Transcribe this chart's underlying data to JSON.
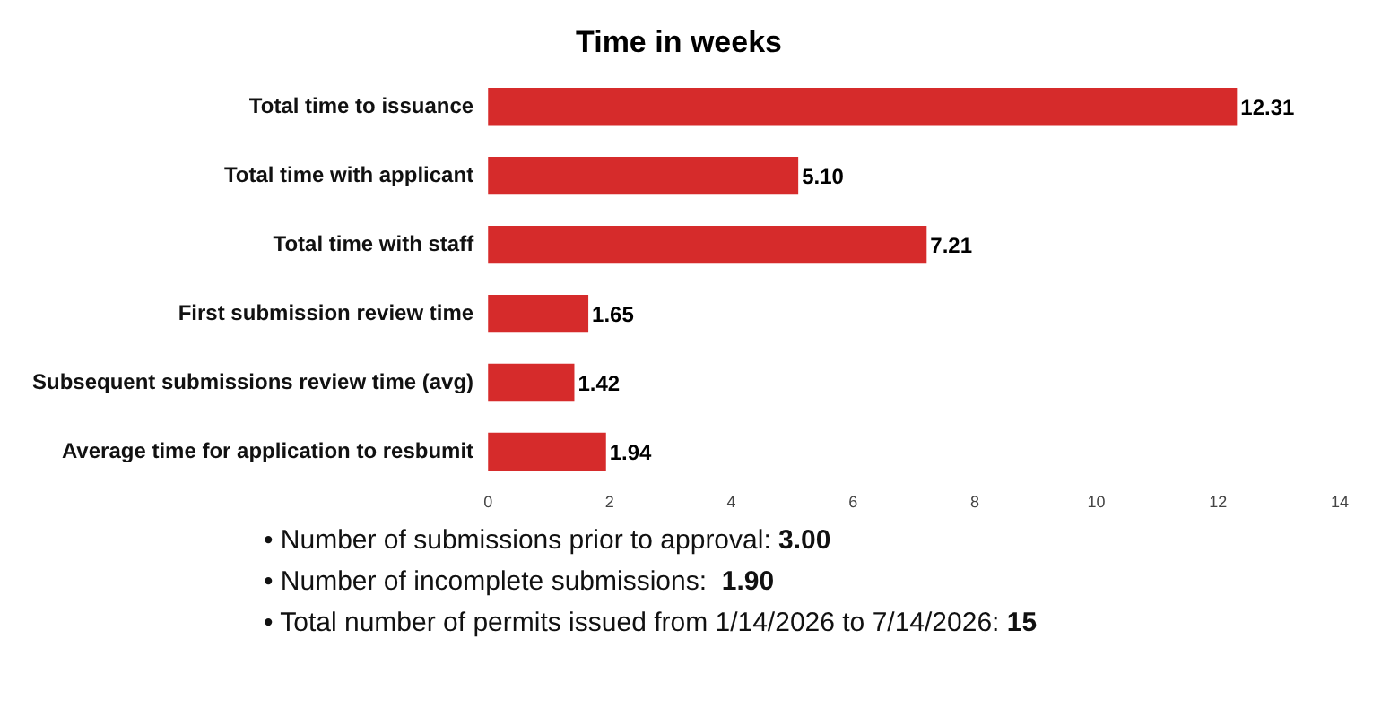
{
  "chart_data": {
    "type": "bar",
    "orientation": "horizontal",
    "title": "Time in weeks",
    "categories": [
      "Total time to issuance",
      "Total time with applicant",
      "Total time with staff",
      "First submission review time",
      "Subsequent submissions review time (avg)",
      "Average time for application to resbumit"
    ],
    "values": [
      12.31,
      5.1,
      7.21,
      1.65,
      1.42,
      1.94
    ],
    "value_labels": [
      "12.31",
      "5.10",
      "7.21",
      "1.65",
      "1.42",
      "1.94"
    ],
    "color": "#d62b2b",
    "xlim": [
      0,
      14
    ],
    "xticks": [
      0,
      2,
      4,
      6,
      8,
      10,
      12,
      14
    ],
    "grid": false,
    "legend": false,
    "annotations": [
      "• Number of submissions prior to approval: 3.00",
      "• Number of incomplete submissions:  1.90",
      "• Total number of permits issued from 1/14/2026 to 7/14/2026: 15"
    ]
  }
}
